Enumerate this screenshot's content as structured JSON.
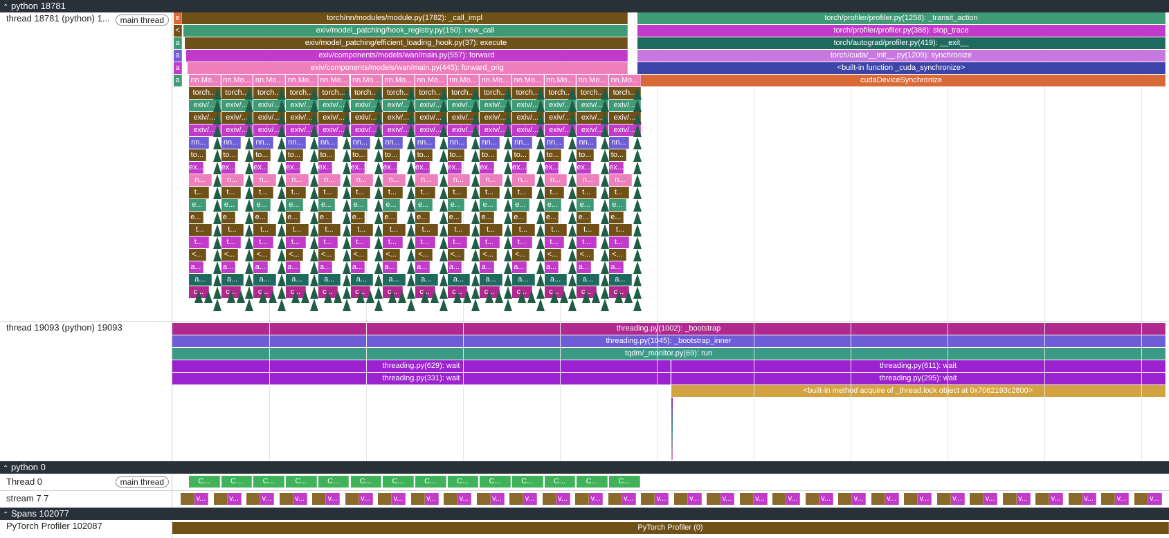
{
  "groups": {
    "python_main": "python 18781",
    "python_0": "python 0",
    "spans": "Spans 102077"
  },
  "tracks": {
    "thread_main": {
      "label": "thread 18781 (python) 1...",
      "chip": "main thread"
    },
    "thread_19093": {
      "label": "thread 19093 (python) 19093"
    },
    "thread_0": {
      "label": "Thread 0",
      "chip": "main thread"
    },
    "stream": {
      "label": "stream 7 7"
    },
    "profiler": {
      "label": "PyTorch Profiler 102087"
    }
  },
  "main_left_stack": [
    "torch/nn/modules/module.py(1782): _call_impl",
    "exiv/model_patching/hook_registry.py(150): new_call",
    "exiv/model_patching/efficient_loading_hook.py(37): execute",
    "exiv/components/models/wan/main.py(557): forward",
    "exiv/components/models/wan/main.py(445): forward_orig"
  ],
  "main_right_stack": [
    "torch/profiler/profiler.py(1258): _transit_action",
    "torch/profiler/profiler.py(388): stop_trace",
    "torch/autograd/profiler.py(419): __exit__",
    "torch/cuda/__init__.py(1209): synchronize",
    "<built-in function _cuda_synchronize>",
    "cudaDeviceSynchronize"
  ],
  "main_side_letters": [
    "e",
    "<",
    "a",
    "a",
    "a",
    "a"
  ],
  "block_rows": [
    "nn.Mo...",
    "torch...",
    "exiv/...",
    "exiv/...",
    "exiv/...",
    "nn...",
    "to...",
    "ex...",
    "n...",
    "t...",
    "e...",
    "e...",
    "t...",
    "t...",
    "<...",
    "a...",
    "a...",
    "c..."
  ],
  "thread_19093_slices": {
    "bootstrap": "threading.py(1002): _bootstrap",
    "bootstrap_inner": "threading.py(1045): _bootstrap_inner",
    "monitor": "tqdm/_monitor.py(69): run",
    "wait_left_1": "threading.py(629): wait",
    "wait_left_2": "threading.py(331): wait",
    "wait_right_1": "threading.py(611): wait",
    "wait_right_2": "threading.py(295): wait",
    "acquire": "<built-in method acquire of _thread.lock object at 0x7062193c2800>"
  },
  "thread0_block": "C...",
  "stream_block": "v...",
  "profiler_slice": "PyTorch Profiler (0)",
  "colors": {
    "header_bg": "#283038",
    "olive": "#6f5118",
    "green_teal": "#3f9a76",
    "magenta": "#c13ac9",
    "pink": "#ee7fbd",
    "dark_teal": "#1e6a5f",
    "violet": "#9b2ad0",
    "indigo": "#3d44a8",
    "orange": "#d96a38",
    "gold": "#d3a342"
  }
}
